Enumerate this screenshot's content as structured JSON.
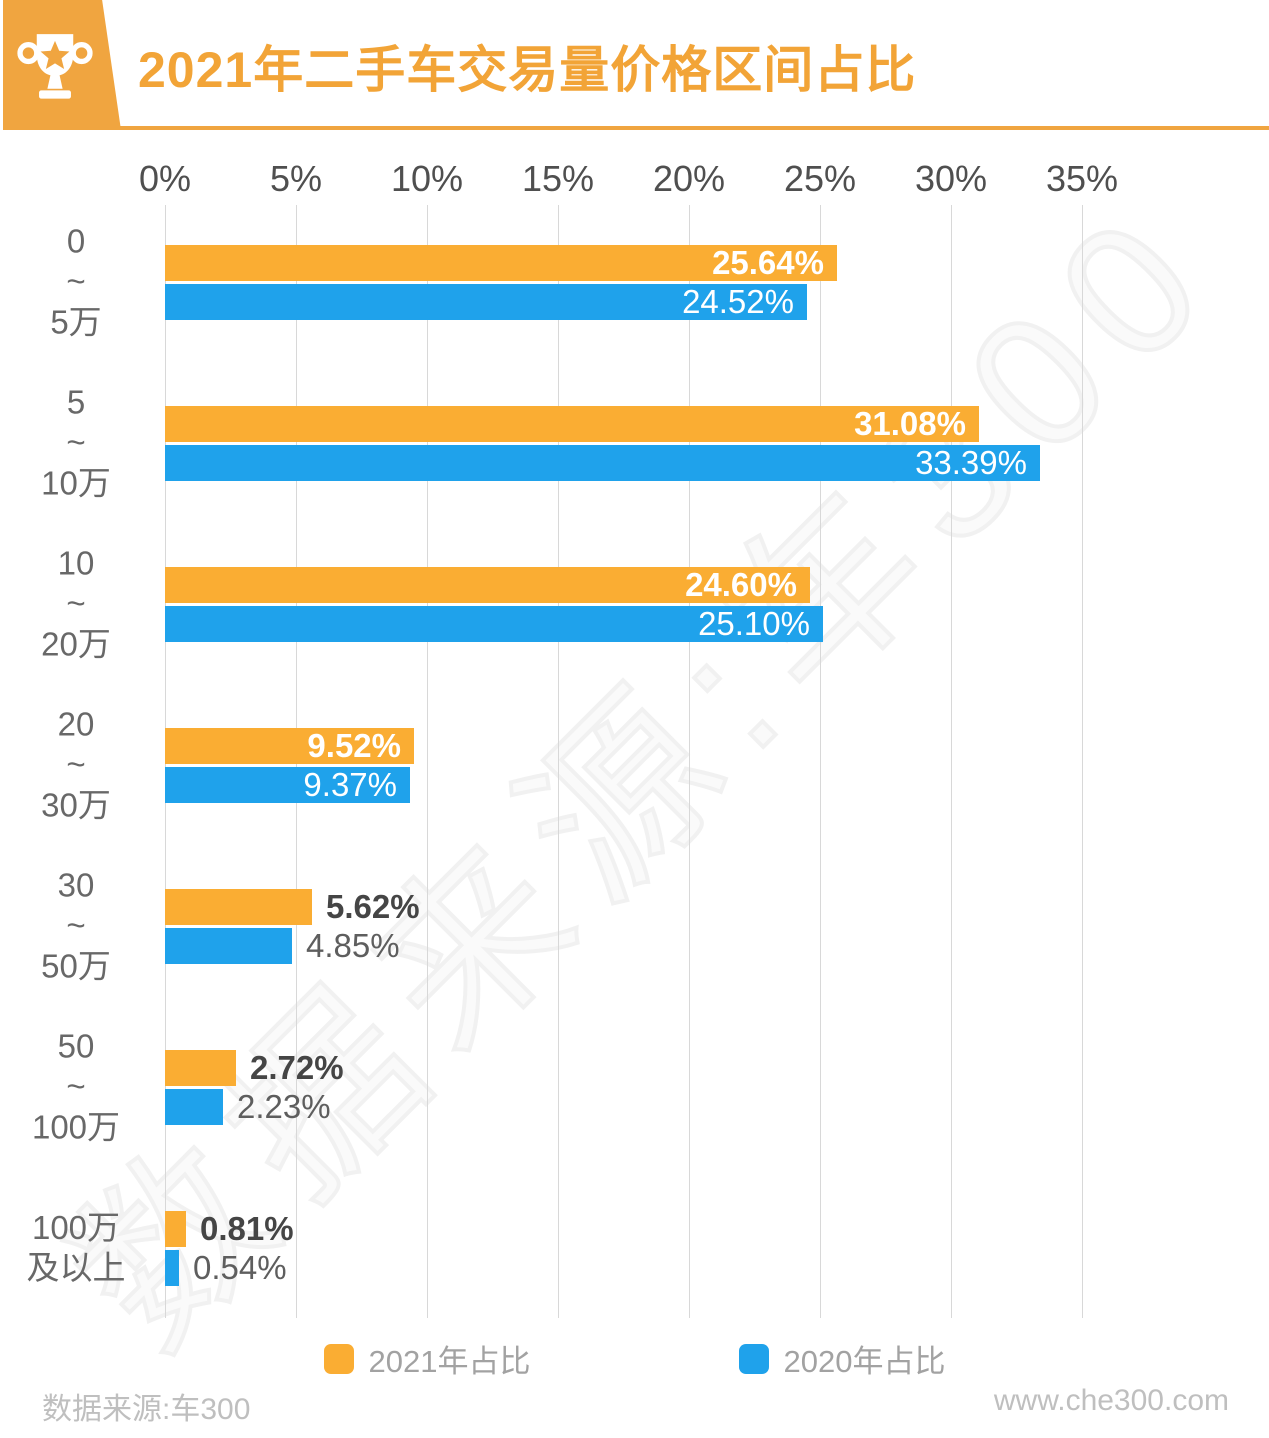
{
  "header": {
    "title": "2021年二手车交易量价格区间占比",
    "accent_color": "#F0A540",
    "title_color": "#F2A437"
  },
  "watermark": "数据来源:车300",
  "chart_data": {
    "type": "bar",
    "orientation": "horizontal",
    "title": "2021年二手车交易量价格区间占比",
    "categories": [
      "0\n~\n5万",
      "5\n~\n10万",
      "10\n~\n20万",
      "20\n~\n30万",
      "30\n~\n50万",
      "50\n~\n100万",
      "100万\n及以上"
    ],
    "series": [
      {
        "name": "2021年占比",
        "color": "#FAAD33",
        "values": [
          25.64,
          31.08,
          24.6,
          9.52,
          5.62,
          2.72,
          0.81
        ],
        "labels": [
          "25.64%",
          "31.08%",
          "24.60%",
          "9.52%",
          "5.62%",
          "2.72%",
          "0.81%"
        ]
      },
      {
        "name": "2020年占比",
        "color": "#1FA2EB",
        "values": [
          24.52,
          33.39,
          25.1,
          9.37,
          4.85,
          2.23,
          0.54
        ],
        "labels": [
          "24.52%",
          "33.39%",
          "25.10%",
          "9.37%",
          "4.85%",
          "2.23%",
          "0.54%"
        ]
      }
    ],
    "x_ticks": [
      "0%",
      "5%",
      "10%",
      "15%",
      "20%",
      "25%",
      "30%",
      "35%"
    ],
    "xlim": [
      0,
      42
    ],
    "grid": true,
    "gridline_color": "#d8d8d8",
    "legend_position": "bottom"
  },
  "footer": {
    "source": "数据来源:车300",
    "site": "www.che300.com"
  }
}
